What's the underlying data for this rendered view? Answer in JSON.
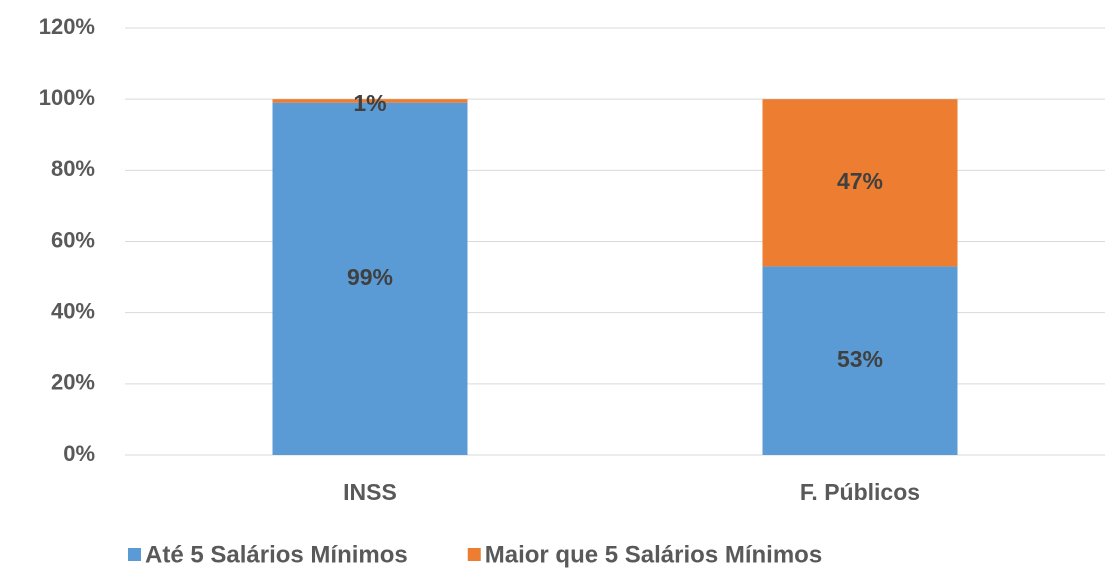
{
  "chart_data": {
    "type": "stacked_bar",
    "categories": [
      "INSS",
      "F. Públicos"
    ],
    "series": [
      {
        "name": "Até 5 Salários Mínimos",
        "color": "#5b9bd5",
        "values": [
          99,
          53
        ],
        "value_labels": [
          "99%",
          "53%"
        ]
      },
      {
        "name": "Maior que 5 Salários Mínimos",
        "color": "#ed7d31",
        "values": [
          1,
          47
        ],
        "value_labels": [
          "1%",
          "47%"
        ]
      }
    ],
    "ylim": [
      0,
      120
    ],
    "yticks": [
      {
        "value": 0,
        "label": "0%"
      },
      {
        "value": 20,
        "label": "20%"
      },
      {
        "value": 40,
        "label": "40%"
      },
      {
        "value": 60,
        "label": "60%"
      },
      {
        "value": 80,
        "label": "80%"
      },
      {
        "value": 100,
        "label": "100%"
      },
      {
        "value": 120,
        "label": "120%"
      }
    ],
    "grid": true,
    "legend": "bottom"
  }
}
